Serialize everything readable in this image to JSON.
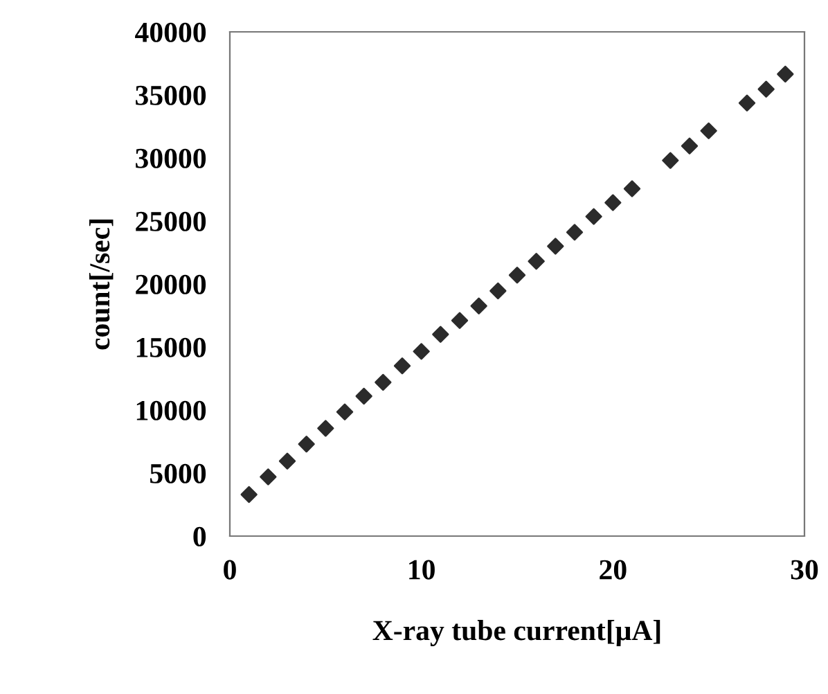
{
  "chart_data": {
    "type": "scatter",
    "xlabel": "X-ray tube current[μA]",
    "ylabel": "count[/sec]",
    "x": [
      1,
      2,
      3,
      4,
      5,
      6,
      7,
      8,
      9,
      10,
      11,
      12,
      13,
      14,
      15,
      16,
      17,
      18,
      19,
      20,
      21,
      23,
      24,
      25,
      27,
      28,
      29
    ],
    "series": [
      {
        "color": "#2b2b2b",
        "values": [
          3300,
          4700,
          5950,
          7300,
          8550,
          9850,
          11100,
          12200,
          13500,
          14650,
          16000,
          17100,
          18250,
          19450,
          20700,
          21800,
          23000,
          24100,
          25350,
          26450,
          27550,
          29800,
          30950,
          32150,
          34350,
          35450,
          36650
        ]
      }
    ],
    "marker": "diamond",
    "xlim": [
      0,
      30
    ],
    "xticks": [
      0,
      10,
      20,
      30
    ],
    "ylim": [
      0,
      40000
    ],
    "yticks": [
      0,
      5000,
      10000,
      15000,
      20000,
      25000,
      30000,
      35000,
      40000
    ],
    "grid": false,
    "legend": false
  }
}
